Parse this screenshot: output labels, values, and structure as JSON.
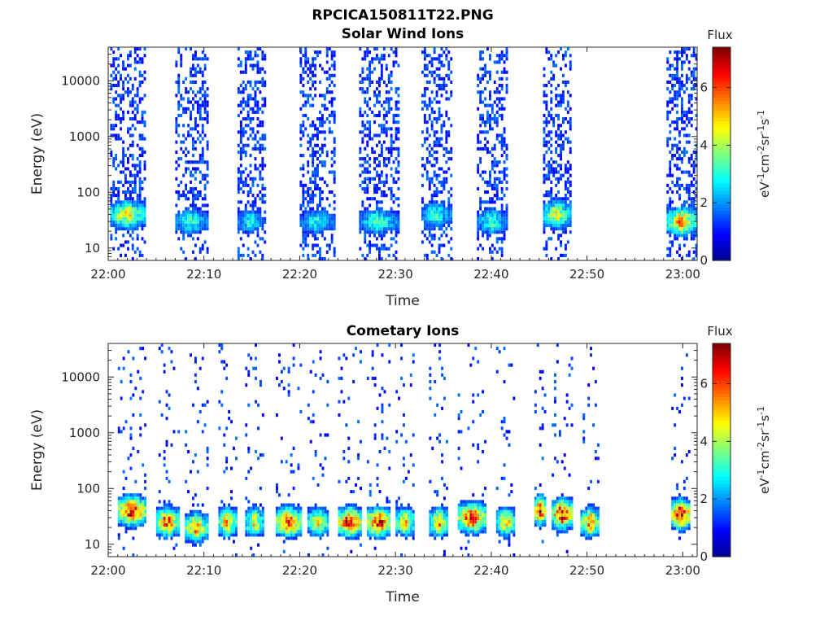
{
  "title": "RPCICA150811T22.PNG",
  "colors": {
    "colormap": [
      "#00008f",
      "#0000ff",
      "#007fff",
      "#00ffff",
      "#7fff7f",
      "#ffff00",
      "#ff7f00",
      "#ff0000",
      "#7f0000"
    ],
    "background": "#ffffff",
    "axis": "#262626"
  },
  "chart_data": [
    {
      "type": "heatmap",
      "title": "Solar Wind Ions",
      "xlabel": "Time",
      "ylabel": "Energy (eV)",
      "x_ticks": [
        "22:00",
        "22:10",
        "22:20",
        "22:30",
        "22:40",
        "22:50",
        "23:00"
      ],
      "x_range_minutes": [
        0,
        61.5
      ],
      "y_ticks": [
        "10",
        "100",
        "1000",
        "10000"
      ],
      "y_range_eV": [
        6,
        40000
      ],
      "y_scale": "log",
      "colorbar": {
        "label": "Flux",
        "unit_label": "eV-1cm-2sr-1s-1",
        "ticks": [
          "0",
          "2",
          "4",
          "6"
        ],
        "range": [
          0,
          7.4
        ]
      },
      "bursts": [
        {
          "start_min": 0.2,
          "end_min": 3.8,
          "peak_flux": 4.6,
          "peak_energy_eV": 40
        },
        {
          "start_min": 7.0,
          "end_min": 10.3,
          "peak_flux": 3.2,
          "peak_energy_eV": 30
        },
        {
          "start_min": 13.5,
          "end_min": 16.3,
          "peak_flux": 3.0,
          "peak_energy_eV": 30
        },
        {
          "start_min": 20.0,
          "end_min": 23.7,
          "peak_flux": 2.8,
          "peak_energy_eV": 30
        },
        {
          "start_min": 26.2,
          "end_min": 30.3,
          "peak_flux": 3.2,
          "peak_energy_eV": 30
        },
        {
          "start_min": 32.7,
          "end_min": 35.8,
          "peak_flux": 3.2,
          "peak_energy_eV": 40
        },
        {
          "start_min": 38.5,
          "end_min": 41.7,
          "peak_flux": 3.2,
          "peak_energy_eV": 30
        },
        {
          "start_min": 45.4,
          "end_min": 48.3,
          "peak_flux": 4.4,
          "peak_energy_eV": 40
        },
        {
          "start_min": 58.3,
          "end_min": 61.5,
          "peak_flux": 5.2,
          "peak_energy_eV": 30
        }
      ],
      "background_flux": 0.8
    },
    {
      "type": "heatmap",
      "title": "Cometary Ions",
      "xlabel": "Time",
      "ylabel": "Energy (eV)",
      "x_ticks": [
        "22:00",
        "22:10",
        "22:20",
        "22:30",
        "22:40",
        "22:50",
        "23:00"
      ],
      "x_range_minutes": [
        0,
        61.5
      ],
      "y_ticks": [
        "10",
        "100",
        "1000",
        "10000"
      ],
      "y_range_eV": [
        6,
        40000
      ],
      "y_scale": "log",
      "colorbar": {
        "label": "Flux",
        "unit_label": "eV-1cm-2sr-1s-1",
        "ticks": [
          "0",
          "2",
          "4",
          "6"
        ],
        "range": [
          0,
          7.4
        ]
      },
      "bursts": [
        {
          "start_min": 1.0,
          "end_min": 4.0,
          "peak_flux": 6.6,
          "peak_energy_eV": 40
        },
        {
          "start_min": 5.0,
          "end_min": 7.3,
          "peak_flux": 6.0,
          "peak_energy_eV": 25
        },
        {
          "start_min": 8.0,
          "end_min": 10.3,
          "peak_flux": 5.4,
          "peak_energy_eV": 20
        },
        {
          "start_min": 11.5,
          "end_min": 13.3,
          "peak_flux": 5.4,
          "peak_energy_eV": 25
        },
        {
          "start_min": 14.3,
          "end_min": 16.2,
          "peak_flux": 4.8,
          "peak_energy_eV": 25
        },
        {
          "start_min": 17.5,
          "end_min": 20.2,
          "peak_flux": 6.4,
          "peak_energy_eV": 25
        },
        {
          "start_min": 20.8,
          "end_min": 23.0,
          "peak_flux": 4.8,
          "peak_energy_eV": 25
        },
        {
          "start_min": 24.0,
          "end_min": 26.5,
          "peak_flux": 6.8,
          "peak_energy_eV": 25
        },
        {
          "start_min": 27.0,
          "end_min": 29.5,
          "peak_flux": 6.6,
          "peak_energy_eV": 25
        },
        {
          "start_min": 30.0,
          "end_min": 32.0,
          "peak_flux": 5.0,
          "peak_energy_eV": 25
        },
        {
          "start_min": 33.5,
          "end_min": 35.5,
          "peak_flux": 5.2,
          "peak_energy_eV": 25
        },
        {
          "start_min": 36.5,
          "end_min": 39.5,
          "peak_flux": 6.4,
          "peak_energy_eV": 30
        },
        {
          "start_min": 40.5,
          "end_min": 42.5,
          "peak_flux": 5.0,
          "peak_energy_eV": 25
        },
        {
          "start_min": 44.5,
          "end_min": 45.6,
          "peak_flux": 7.0,
          "peak_energy_eV": 40
        },
        {
          "start_min": 46.3,
          "end_min": 48.5,
          "peak_flux": 6.8,
          "peak_energy_eV": 35
        },
        {
          "start_min": 49.3,
          "end_min": 51.3,
          "peak_flux": 5.6,
          "peak_energy_eV": 25
        },
        {
          "start_min": 58.8,
          "end_min": 60.8,
          "peak_flux": 7.2,
          "peak_energy_eV": 35
        }
      ],
      "background_flux": 0.8
    }
  ]
}
